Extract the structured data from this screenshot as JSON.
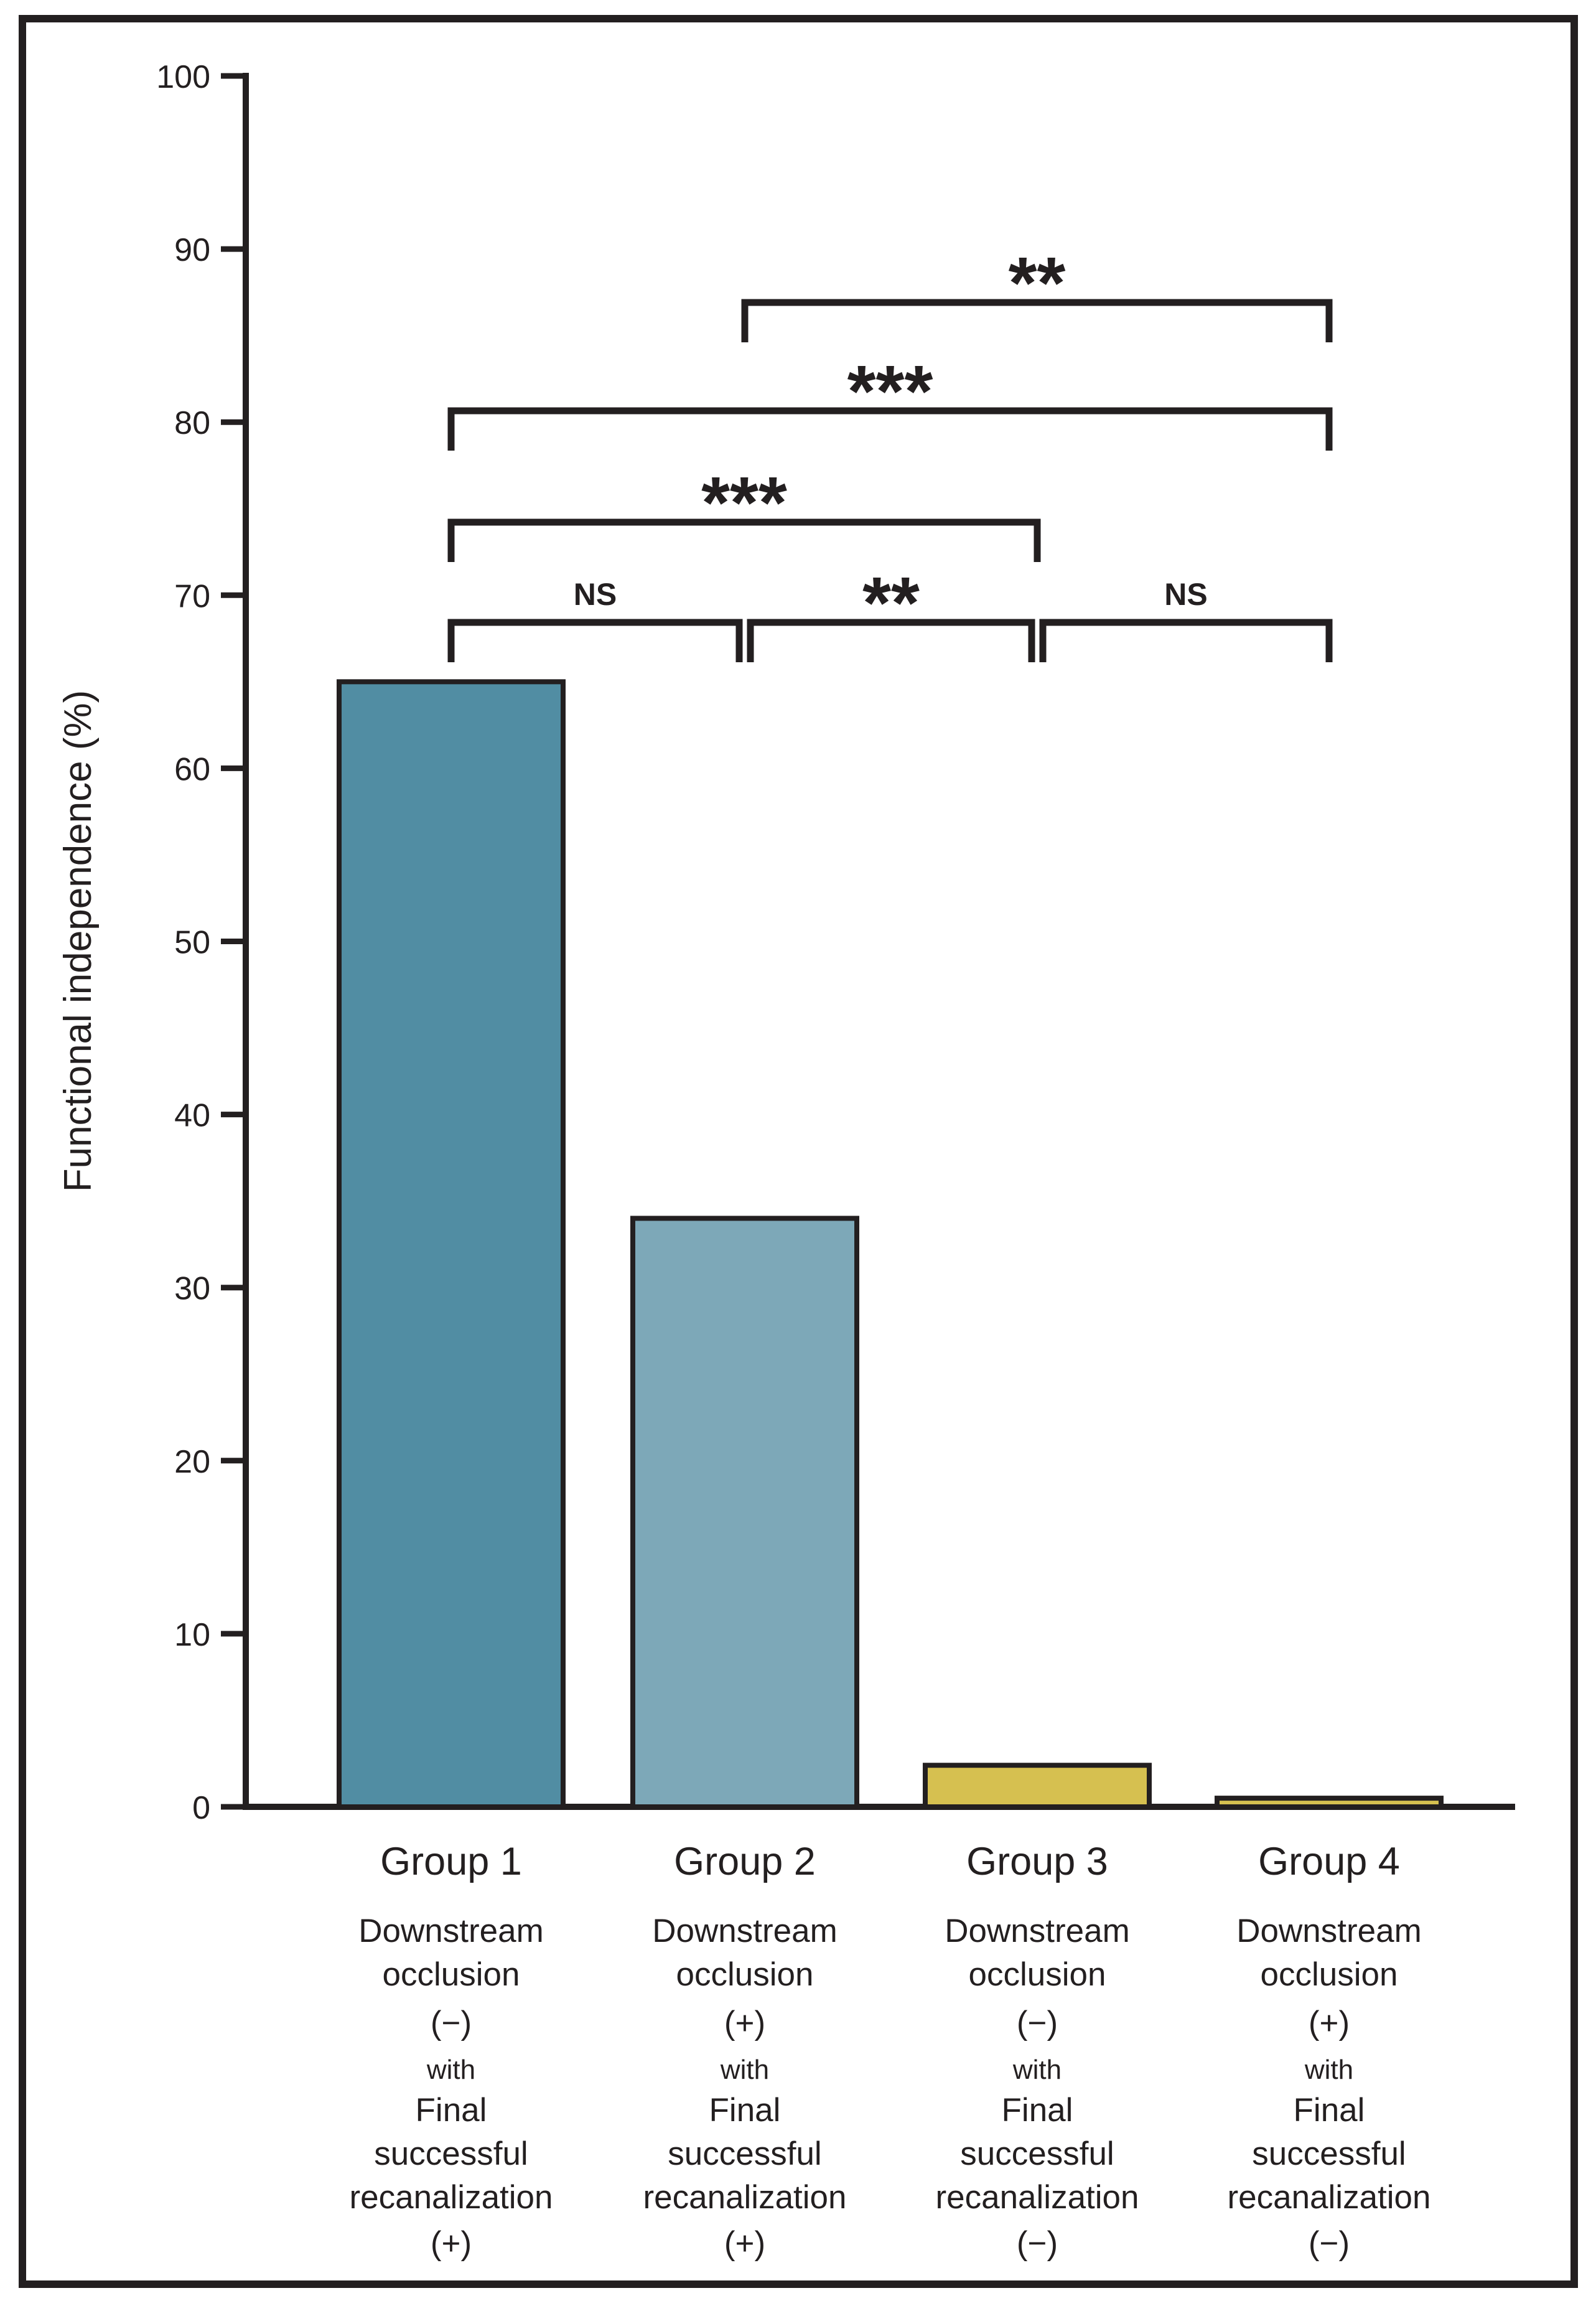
{
  "figure": {
    "background": "#ffffff",
    "ink_color": "#231f20",
    "frame": {
      "visible": true,
      "stroke_width": 12
    }
  },
  "chart_data": {
    "type": "bar",
    "title": "",
    "xlabel": "",
    "ylabel": "Functional independence (%)",
    "ylim": [
      0,
      100
    ],
    "yticks": [
      0,
      10,
      20,
      30,
      40,
      50,
      60,
      70,
      80,
      90,
      100
    ],
    "grid": false,
    "legend": "none",
    "categories": [
      "Group 1",
      "Group 2",
      "Group 3",
      "Group 4"
    ],
    "values": [
      65,
      34,
      2.4,
      0.5
    ],
    "bar_colors": [
      "#518da3",
      "#7da8b8",
      "#d6c050",
      "#d6c050"
    ],
    "bar_edge_color": "#231f20",
    "group_sublabels": [
      [
        "Downstream",
        "occlusion",
        "(−)",
        "with",
        "Final",
        "successful",
        "recanalization",
        "(+)"
      ],
      [
        "Downstream",
        "occlusion",
        "(+)",
        "with",
        "Final",
        "successful",
        "recanalization",
        "(+)"
      ],
      [
        "Downstream",
        "occlusion",
        "(−)",
        "with",
        "Final",
        "successful",
        "recanalization",
        "(−)"
      ],
      [
        "Downstream",
        "occlusion",
        "(+)",
        "with",
        "Final",
        "successful",
        "recanalization",
        "(−)"
      ]
    ],
    "significance_annotations": [
      {
        "label": "NS",
        "between": [
          "Group 1",
          "Group 2"
        ],
        "level": 1
      },
      {
        "label": "**",
        "between": [
          "Group 2",
          "Group 3"
        ],
        "level": 1
      },
      {
        "label": "NS",
        "between": [
          "Group 3",
          "Group 4"
        ],
        "level": 1
      },
      {
        "label": "***",
        "between": [
          "Group 1",
          "Group 3"
        ],
        "level": 2
      },
      {
        "label": "***",
        "between": [
          "Group 1",
          "Group 4"
        ],
        "level": 3
      },
      {
        "label": "**",
        "between": [
          "Group 2",
          "Group 4"
        ],
        "level": 4
      }
    ]
  }
}
